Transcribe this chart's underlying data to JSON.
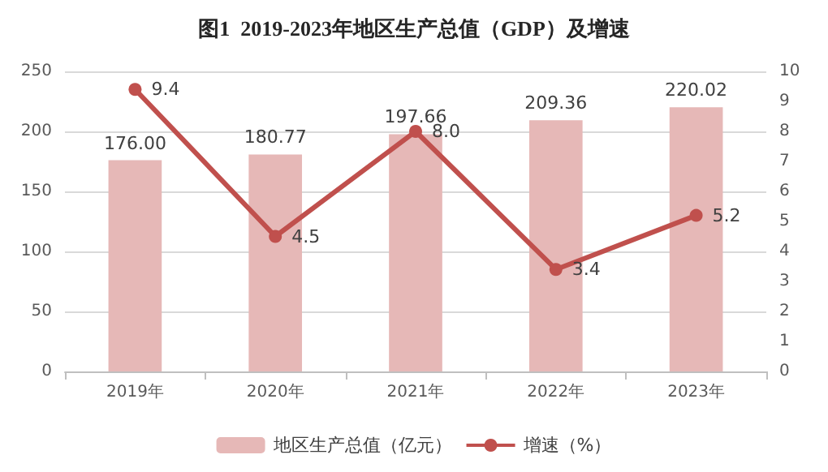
{
  "chart_data": {
    "type": "bar",
    "title": "图1  2019-2023年地区生产总值（GDP）及增速",
    "categories": [
      "2019年",
      "2020年",
      "2021年",
      "2022年",
      "2023年"
    ],
    "series": [
      {
        "name": "地区生产总值（亿元）",
        "color": "#e6b8b7",
        "values": [
          176.0,
          180.77,
          197.66,
          209.36,
          220.02
        ],
        "value_labels": [
          "176.00",
          "180.77",
          "197.66",
          "209.36",
          "220.02"
        ]
      },
      {
        "name": "增速（%）",
        "type": "line",
        "axis": "y2",
        "color": "#c0504d",
        "values": [
          9.4,
          4.5,
          8.0,
          3.4,
          5.2
        ],
        "value_labels": [
          "9.4",
          "4.5",
          "8.0",
          "3.4",
          "5.2"
        ]
      }
    ],
    "ylim": [
      0,
      250
    ],
    "yticks": [
      0,
      50,
      100,
      150,
      200,
      250
    ],
    "y2lim": [
      0,
      10
    ],
    "y2ticks": [
      0,
      1,
      2,
      3,
      4,
      5,
      6,
      7,
      8,
      9,
      10
    ],
    "grid": "y",
    "legend": "bottom",
    "marker": "circle",
    "line_style": "solid"
  }
}
